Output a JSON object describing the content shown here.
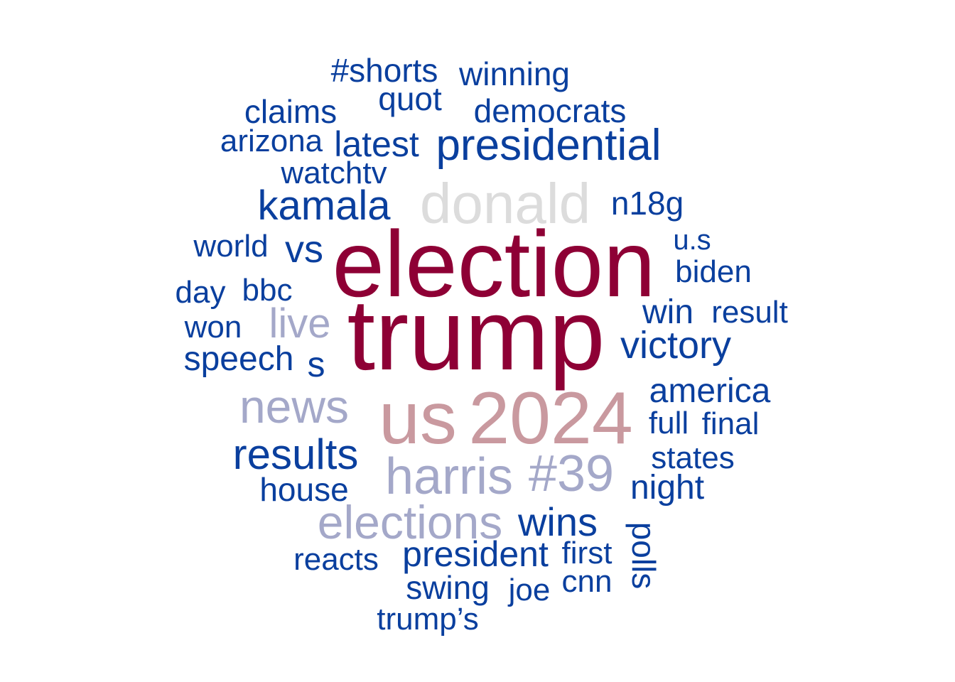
{
  "colors": {
    "blue": "#0a3f9e",
    "crimson": "#8e0035",
    "rose": "#c9999f",
    "lavender": "#a4a8c9",
    "lightgray": "#dcdcdc"
  },
  "words": [
    {
      "text": "#shorts"
    },
    {
      "text": "winning"
    },
    {
      "text": "quot"
    },
    {
      "text": "claims"
    },
    {
      "text": "democrats"
    },
    {
      "text": "arizona"
    },
    {
      "text": "latest"
    },
    {
      "text": "presidential"
    },
    {
      "text": "watchtv"
    },
    {
      "text": "kamala"
    },
    {
      "text": "donald"
    },
    {
      "text": "n18g"
    },
    {
      "text": "world"
    },
    {
      "text": "vs"
    },
    {
      "text": "election"
    },
    {
      "text": "u.s"
    },
    {
      "text": "biden"
    },
    {
      "text": "day"
    },
    {
      "text": "bbc"
    },
    {
      "text": "live"
    },
    {
      "text": "trump"
    },
    {
      "text": "win"
    },
    {
      "text": "result"
    },
    {
      "text": "won"
    },
    {
      "text": "victory"
    },
    {
      "text": "speech"
    },
    {
      "text": "s"
    },
    {
      "text": "america"
    },
    {
      "text": "news"
    },
    {
      "text": "us"
    },
    {
      "text": "2024"
    },
    {
      "text": "full"
    },
    {
      "text": "final"
    },
    {
      "text": "results"
    },
    {
      "text": "states"
    },
    {
      "text": "harris"
    },
    {
      "text": "#39"
    },
    {
      "text": "house"
    },
    {
      "text": "night"
    },
    {
      "text": "elections"
    },
    {
      "text": "wins"
    },
    {
      "text": "polls"
    },
    {
      "text": "president"
    },
    {
      "text": "first"
    },
    {
      "text": "reacts"
    },
    {
      "text": "swing"
    },
    {
      "text": "joe"
    },
    {
      "text": "cnn"
    },
    {
      "text": "trump’s"
    }
  ]
}
